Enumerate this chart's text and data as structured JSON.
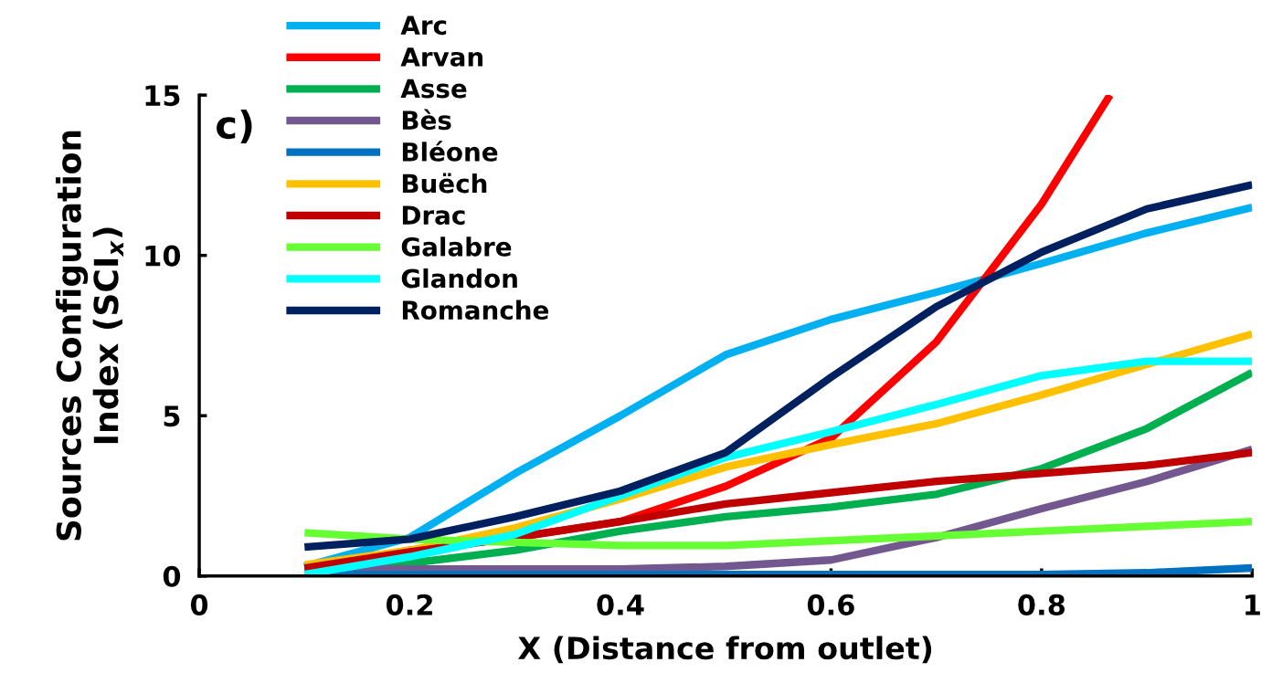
{
  "chart_data": {
    "type": "line",
    "xlabel": "X (Distance from outlet)",
    "ylabel": "Sources Configuration\nIndex (SCI$_{x}$)",
    "x": [
      0.1,
      0.2,
      0.3,
      0.4,
      0.5,
      0.6,
      0.7,
      0.8,
      0.9,
      1.0
    ],
    "series": [
      {
        "name": "Arc",
        "color": "#00b0f0",
        "values": [
          0.3,
          1.2,
          3.2,
          5.0,
          6.9,
          8.0,
          8.85,
          9.75,
          10.7,
          11.5
        ]
      },
      {
        "name": "Arvan",
        "color": "#ff0000",
        "x": [
          0.1,
          0.2,
          0.3,
          0.4,
          0.5,
          0.6,
          0.7,
          0.8,
          0.865
        ],
        "values": [
          0.25,
          0.8,
          1.2,
          1.7,
          2.8,
          4.3,
          7.3,
          11.6,
          15
        ]
      },
      {
        "name": "Asse",
        "color": "#00b050",
        "values": [
          0.3,
          0.4,
          0.8,
          1.4,
          1.85,
          2.15,
          2.55,
          3.35,
          4.6,
          6.35
        ]
      },
      {
        "name": "Bès",
        "color": "#73578f",
        "values": [
          0.25,
          0.22,
          0.22,
          0.22,
          0.3,
          0.5,
          1.2,
          2.1,
          2.95,
          3.95
        ]
      },
      {
        "name": "Bléone",
        "color": "#0070c0",
        "values": [
          0.05,
          0.05,
          0.05,
          0.05,
          0.05,
          0.05,
          0.05,
          0.05,
          0.1,
          0.25
        ]
      },
      {
        "name": "Buëch",
        "color": "#ffc000",
        "values": [
          0.35,
          0.8,
          1.5,
          2.4,
          3.4,
          4.1,
          4.75,
          5.65,
          6.6,
          7.55
        ]
      },
      {
        "name": "Drac",
        "color": "#c00000",
        "values": [
          0.25,
          0.75,
          1.2,
          1.7,
          2.25,
          2.6,
          2.95,
          3.2,
          3.45,
          3.85
        ]
      },
      {
        "name": "Galabre",
        "color": "#66ff33",
        "values": [
          1.35,
          1.15,
          1.05,
          0.95,
          0.95,
          1.1,
          1.25,
          1.4,
          1.55,
          1.7
        ]
      },
      {
        "name": "Glandon",
        "color": "#00ffff",
        "values": [
          0.05,
          0.6,
          1.3,
          2.5,
          3.7,
          4.5,
          5.35,
          6.25,
          6.7,
          6.7
        ]
      },
      {
        "name": "Romanche",
        "color": "#002060",
        "values": [
          0.9,
          1.15,
          1.85,
          2.65,
          3.85,
          6.2,
          8.4,
          10.1,
          11.45,
          12.2
        ]
      }
    ],
    "annotations": [
      "c)"
    ],
    "xlim": [
      0,
      1
    ],
    "xticks": [
      0,
      0.2,
      0.4,
      0.6,
      0.8,
      1
    ],
    "ylim": [
      0,
      15
    ],
    "yticks": [
      0,
      5,
      10,
      15
    ],
    "grid": false,
    "legend": "top left",
    "marker": "none",
    "line_style": "solid"
  }
}
